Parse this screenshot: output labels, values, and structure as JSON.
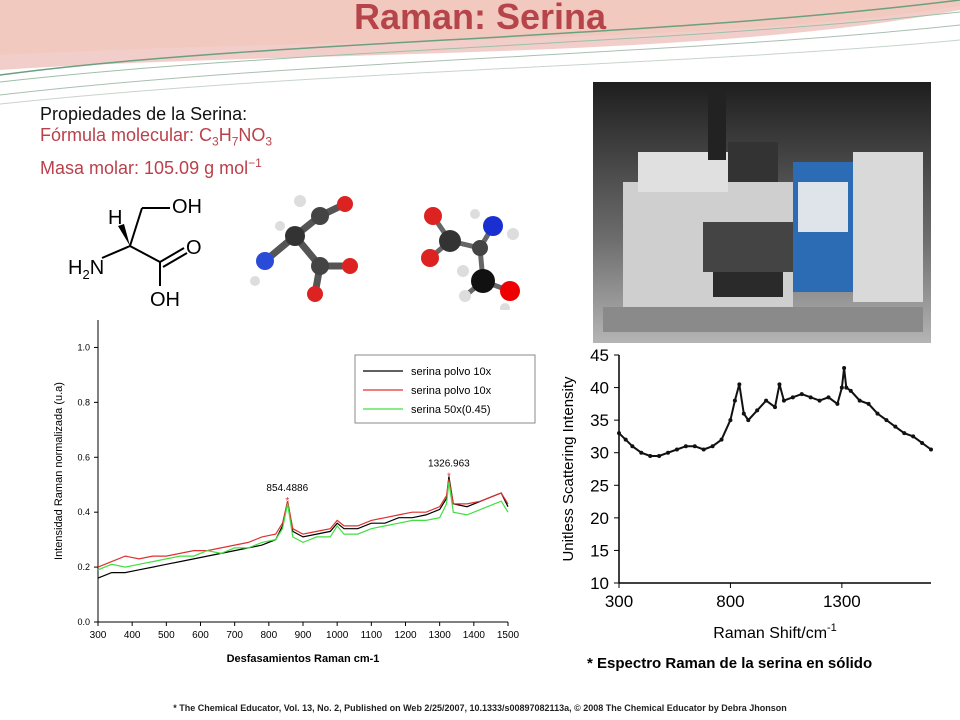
{
  "slide": {
    "title": "Raman: Serina",
    "properties": {
      "heading": "Propiedades de la Serina:",
      "formula_label": "Fórmula molecular: ",
      "formula_parts": [
        "C",
        "3",
        "H",
        "7",
        "NO",
        "3"
      ],
      "molar_mass": " Masa molar: 105.09 g mol",
      "molar_mass_exp": "−1"
    },
    "structure_labels": {
      "oh_top": "OH",
      "h": "H",
      "o": "O",
      "h2n_h": "H",
      "h2n_2": "2",
      "h2n_n": "N",
      "oh_bottom": "OH"
    },
    "citation": "* The Chemical Educator, Vol. 13, No. 2, Published on Web 2/25/2007, 10.1333/s00897082113a, © 2008 The Chemical Educator by Debra Jhonson",
    "photo_icon": "raman-spectrometer-photo",
    "colors": {
      "title": "#b5454a",
      "accent": "#b9414a",
      "banner_band": "#e8a5a0"
    }
  },
  "chart_data": [
    {
      "type": "line",
      "xlabel": "Desfasamientos Raman cm-1",
      "ylabel": "Intensidad Raman normalizada (u.a)",
      "xlim": [
        300,
        1500
      ],
      "ylim": [
        0,
        1.1
      ],
      "xticks": [
        300,
        400,
        500,
        600,
        700,
        800,
        900,
        1000,
        1100,
        1200,
        1300,
        1400,
        1500
      ],
      "yticks": [
        "0.0",
        "0.2",
        "0.4",
        "0.6",
        "0.8",
        "1.0"
      ],
      "legend_position": "top-right",
      "annotations": [
        {
          "text": "854.4886",
          "x": 854,
          "y": 0.44
        },
        {
          "text": "1326.963",
          "x": 1327,
          "y": 0.53
        }
      ],
      "series": [
        {
          "name": "serina polvo 10x",
          "color": "#000000",
          "x": [
            300,
            340,
            380,
            420,
            460,
            500,
            540,
            580,
            620,
            660,
            700,
            740,
            780,
            820,
            840,
            855,
            870,
            900,
            940,
            980,
            1000,
            1020,
            1060,
            1100,
            1140,
            1180,
            1220,
            1260,
            1300,
            1320,
            1327,
            1340,
            1380,
            1420,
            1460,
            1480,
            1500
          ],
          "y": [
            0.16,
            0.18,
            0.18,
            0.19,
            0.2,
            0.21,
            0.22,
            0.23,
            0.24,
            0.25,
            0.26,
            0.27,
            0.28,
            0.3,
            0.35,
            0.44,
            0.33,
            0.31,
            0.32,
            0.33,
            0.36,
            0.34,
            0.34,
            0.36,
            0.36,
            0.38,
            0.38,
            0.39,
            0.41,
            0.45,
            0.53,
            0.43,
            0.42,
            0.44,
            0.46,
            0.47,
            0.42
          ]
        },
        {
          "name": "serina polvo 10x",
          "color": "#e03030",
          "x": [
            300,
            340,
            380,
            420,
            460,
            500,
            540,
            580,
            620,
            660,
            700,
            740,
            780,
            820,
            840,
            855,
            870,
            900,
            940,
            980,
            1000,
            1020,
            1060,
            1100,
            1140,
            1180,
            1220,
            1260,
            1300,
            1320,
            1327,
            1340,
            1380,
            1420,
            1460,
            1480,
            1500
          ],
          "y": [
            0.2,
            0.22,
            0.24,
            0.23,
            0.24,
            0.24,
            0.25,
            0.26,
            0.26,
            0.27,
            0.28,
            0.29,
            0.31,
            0.32,
            0.36,
            0.44,
            0.34,
            0.32,
            0.33,
            0.34,
            0.37,
            0.35,
            0.35,
            0.37,
            0.38,
            0.39,
            0.4,
            0.4,
            0.42,
            0.46,
            0.52,
            0.43,
            0.43,
            0.44,
            0.46,
            0.47,
            0.43
          ]
        },
        {
          "name": "serina 50x(0.45)",
          "color": "#40e040",
          "x": [
            300,
            340,
            380,
            420,
            460,
            500,
            540,
            580,
            620,
            660,
            700,
            740,
            780,
            820,
            840,
            855,
            870,
            900,
            940,
            980,
            1000,
            1020,
            1060,
            1100,
            1140,
            1180,
            1220,
            1260,
            1300,
            1320,
            1327,
            1340,
            1380,
            1420,
            1460,
            1480,
            1500
          ],
          "y": [
            0.19,
            0.21,
            0.2,
            0.21,
            0.22,
            0.23,
            0.24,
            0.24,
            0.26,
            0.25,
            0.27,
            0.27,
            0.29,
            0.3,
            0.34,
            0.43,
            0.31,
            0.29,
            0.31,
            0.31,
            0.35,
            0.32,
            0.32,
            0.34,
            0.35,
            0.36,
            0.37,
            0.37,
            0.38,
            0.43,
            0.51,
            0.4,
            0.39,
            0.41,
            0.43,
            0.44,
            0.4
          ]
        }
      ]
    },
    {
      "type": "scatter",
      "xlabel": "Raman Shift/cm",
      "xlabel_exp": "-1",
      "ylabel": "Unitless Scattering Intensity",
      "xlim": [
        300,
        1700
      ],
      "ylim": [
        10,
        45
      ],
      "xticks": [
        300,
        800,
        1300
      ],
      "yticks": [
        10,
        15,
        20,
        25,
        30,
        35,
        40,
        45
      ],
      "caption_marker": "*",
      "caption": " Espectro Raman de la serina en sólido",
      "series": [
        {
          "name": "",
          "color": "#111111",
          "x": [
            300,
            330,
            360,
            400,
            440,
            480,
            520,
            560,
            600,
            640,
            680,
            720,
            760,
            800,
            820,
            840,
            860,
            880,
            920,
            960,
            1000,
            1020,
            1040,
            1080,
            1120,
            1160,
            1200,
            1240,
            1280,
            1300,
            1310,
            1320,
            1340,
            1380,
            1420,
            1460,
            1500,
            1540,
            1580,
            1620,
            1660,
            1700
          ],
          "y": [
            33,
            32,
            31,
            30,
            29.5,
            29.5,
            30,
            30.5,
            31,
            31,
            30.5,
            31,
            32,
            35,
            38,
            40.5,
            36,
            35,
            36.5,
            38,
            37,
            40.5,
            38,
            38.5,
            39,
            38.5,
            38,
            38.5,
            37.5,
            40,
            43,
            40,
            39.5,
            38,
            37.5,
            36,
            35,
            34,
            33,
            32.5,
            31.5,
            30.5
          ]
        }
      ]
    }
  ]
}
